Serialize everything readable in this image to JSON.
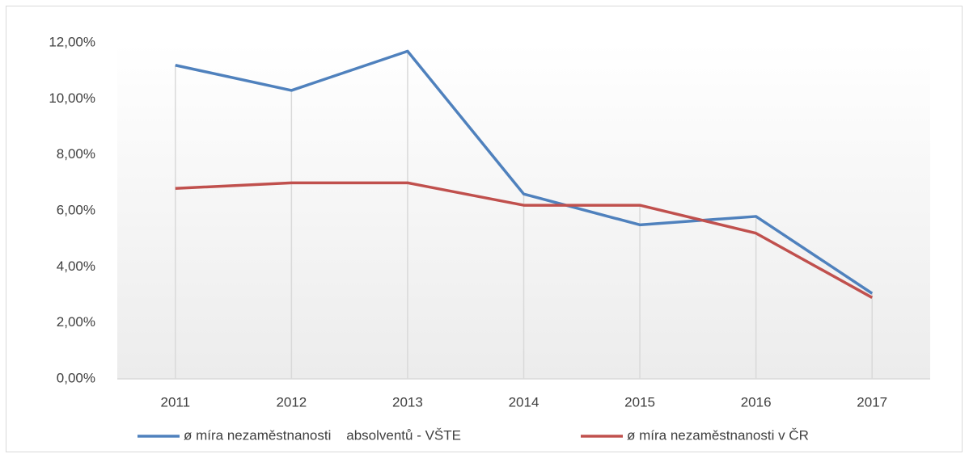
{
  "chart_data": {
    "type": "line",
    "categories": [
      "2011",
      "2012",
      "2013",
      "2014",
      "2015",
      "2016",
      "2017"
    ],
    "series": [
      {
        "name": "ø míra nezaměstnanosti    absolventů - VŠTE",
        "color": "#4f81bd",
        "values": [
          11.2,
          10.3,
          11.7,
          6.6,
          5.5,
          5.8,
          3.05
        ]
      },
      {
        "name": "ø míra nezaměstnanosti v ČR",
        "color": "#c0504d",
        "values": [
          6.8,
          7.0,
          7.0,
          6.2,
          6.2,
          5.2,
          2.9
        ]
      }
    ],
    "ylim": [
      0,
      12
    ],
    "yticks": [
      {
        "value": 0,
        "label": "0,00%"
      },
      {
        "value": 2,
        "label": "2,00%"
      },
      {
        "value": 4,
        "label": "4,00%"
      },
      {
        "value": 6,
        "label": "6,00%"
      },
      {
        "value": 8,
        "label": "8,00%"
      },
      {
        "value": 10,
        "label": "10,00%"
      },
      {
        "value": 12,
        "label": "12,00%"
      }
    ],
    "drop_lines": true,
    "legend": "bottom"
  }
}
